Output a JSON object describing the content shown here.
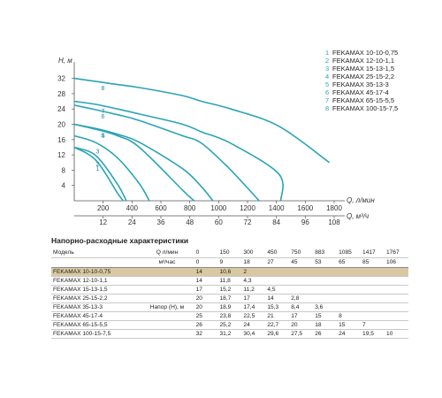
{
  "chart_data": {
    "type": "line",
    "xlabel": "Q, л/мин",
    "xlabel2": "Q, м³/ч",
    "ylabel": "H, м",
    "xlim": [
      0,
      1800
    ],
    "ylim": [
      0,
      34
    ],
    "x_ticks": [
      200,
      400,
      600,
      800,
      1000,
      1200,
      1400,
      1600,
      1800
    ],
    "x2_ticks": [
      12,
      24,
      36,
      48,
      60,
      72,
      84,
      96,
      108
    ],
    "y_ticks": [
      4,
      8,
      12,
      16,
      20,
      24,
      28,
      32
    ],
    "grid": false,
    "legend_position": "top-right",
    "series": [
      {
        "name": "FEKAMAX 10-10-0,75",
        "label": "1",
        "x": [
          0,
          150,
          300,
          340
        ],
        "y": [
          14,
          10.6,
          2,
          0
        ]
      },
      {
        "name": "FEKAMAX 12-10-1,1",
        "label": "2",
        "x": [
          0,
          150,
          300,
          360
        ],
        "y": [
          14,
          11.8,
          4.3,
          0
        ]
      },
      {
        "name": "FEKAMAX 15-13-1,5",
        "label": "3",
        "x": [
          0,
          150,
          300,
          450,
          520
        ],
        "y": [
          17,
          15.2,
          11.2,
          4.5,
          0
        ]
      },
      {
        "name": "FEKAMAX 25-15-2,2",
        "label": "4",
        "x": [
          0,
          150,
          300,
          450,
          750,
          830
        ],
        "y": [
          20,
          18.7,
          17,
          14,
          2.8,
          0
        ]
      },
      {
        "name": "FEKAMAX 35-13-3",
        "label": "5",
        "x": [
          0,
          150,
          300,
          450,
          750,
          883,
          960
        ],
        "y": [
          20,
          18.9,
          17.4,
          15.3,
          8.4,
          3.6,
          0
        ]
      },
      {
        "name": "FEKAMAX 45-17-4",
        "label": "6",
        "x": [
          0,
          150,
          300,
          450,
          750,
          883,
          1085,
          1280
        ],
        "y": [
          25,
          23.8,
          22.5,
          21,
          17,
          15,
          8,
          0
        ]
      },
      {
        "name": "FEKAMAX 65-15-5,5",
        "label": "7",
        "x": [
          0,
          150,
          300,
          450,
          750,
          883,
          1085,
          1417,
          1430
        ],
        "y": [
          26,
          25.2,
          24,
          22.7,
          20,
          18,
          15,
          7,
          0
        ]
      },
      {
        "name": "FEKAMAX 100-15-7,5",
        "label": "8",
        "x": [
          0,
          150,
          300,
          450,
          750,
          883,
          1085,
          1417,
          1767
        ],
        "y": [
          32,
          31.2,
          30.4,
          29.6,
          27.5,
          26,
          24,
          19.5,
          10
        ]
      }
    ]
  },
  "table": {
    "title": "Напорно-расходные характеристики",
    "model_header": "Модель",
    "q_symbol": "Q",
    "unit_lpm": "л/мин",
    "unit_m3h": "м³/час",
    "head_label": "Напор (H), м",
    "q_lpm": [
      "0",
      "150",
      "300",
      "450",
      "750",
      "883",
      "1085",
      "1417",
      "1767"
    ],
    "q_m3h": [
      "0",
      "9",
      "18",
      "27",
      "45",
      "53",
      "65",
      "85",
      "106"
    ],
    "rows": [
      {
        "model": "FEKAMAX 10-10-0,75",
        "values": [
          "14",
          "10,6",
          "2",
          "",
          "",
          "",
          "",
          "",
          ""
        ]
      },
      {
        "model": "FEKAMAX 12-10-1,1",
        "values": [
          "14",
          "11,8",
          "4,3",
          "",
          "",
          "",
          "",
          "",
          ""
        ]
      },
      {
        "model": "FEKAMAX 15-13-1,5",
        "values": [
          "17",
          "15,2",
          "11,2",
          "4,5",
          "",
          "",
          "",
          "",
          ""
        ]
      },
      {
        "model": "FEKAMAX 25-15-2,2",
        "values": [
          "20",
          "18,7",
          "17",
          "14",
          "2,8",
          "",
          "",
          "",
          ""
        ]
      },
      {
        "model": "FEKAMAX 35-13-3",
        "values": [
          "20",
          "18,9",
          "17,4",
          "15,3",
          "8,4",
          "3,6",
          "",
          "",
          ""
        ]
      },
      {
        "model": "FEKAMAX 45-17-4",
        "values": [
          "25",
          "23,8",
          "22,5",
          "21",
          "17",
          "15",
          "8",
          "",
          ""
        ]
      },
      {
        "model": "FEKAMAX 65-15-5,5",
        "values": [
          "26",
          "25,2",
          "24",
          "22,7",
          "20",
          "18",
          "15",
          "7",
          ""
        ]
      },
      {
        "model": "FEKAMAX 100-15-7,5",
        "values": [
          "32",
          "31,2",
          "30,4",
          "29,6",
          "27,5",
          "26",
          "24",
          "19,5",
          "10"
        ]
      }
    ]
  },
  "colors": {
    "curve": "#2aa4b5",
    "highlight_row": "#d9c9a2"
  }
}
